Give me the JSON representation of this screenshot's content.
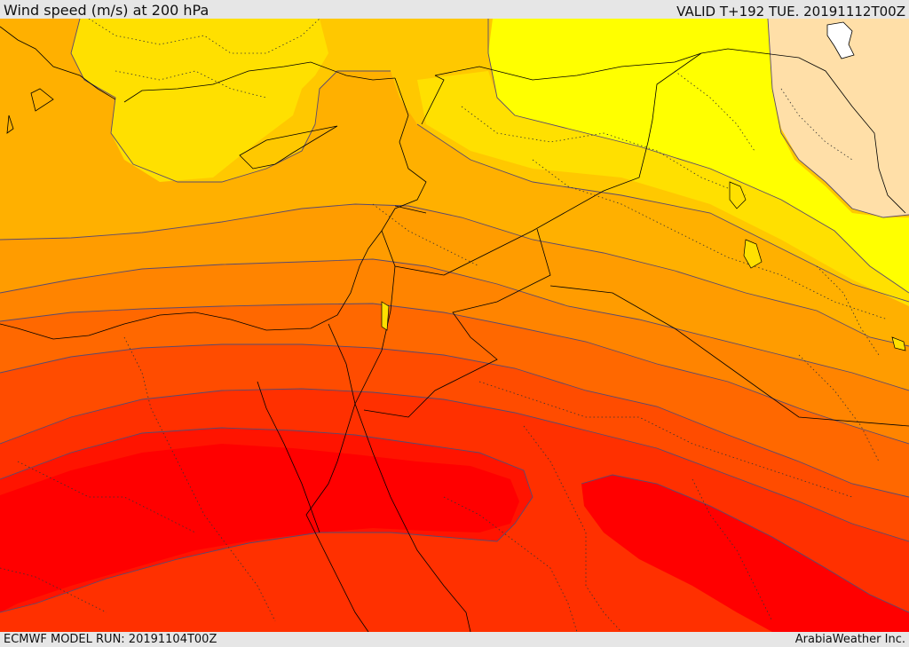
{
  "header": {
    "title": "Wind speed (m/s) at 200 hPa",
    "valid_time": "VALID T+192 TUE. 20191112T00Z"
  },
  "footer": {
    "model_run": "ECMWF MODEL RUN: 20191104T00Z",
    "credit": "ArabiaWeather Inc."
  },
  "map": {
    "variable": "wind speed",
    "units": "m/s",
    "level": "200 hPa",
    "colors": {
      "wheat": "#ffdfa8",
      "yellow": "#ffff00",
      "gold": "#ffe000",
      "amber": "#ffc800",
      "light_orange": "#ffb000",
      "orange": "#ff9c00",
      "dark_orange": "#ff8400",
      "orange_red": "#ff6800",
      "red_orange": "#ff4c00",
      "light_red": "#ff3000",
      "red": "#ff1400",
      "deep_red": "#ff0000",
      "lake": "#ffffff",
      "contour_line": "#5a4a6e",
      "border_line": "#000000"
    }
  }
}
